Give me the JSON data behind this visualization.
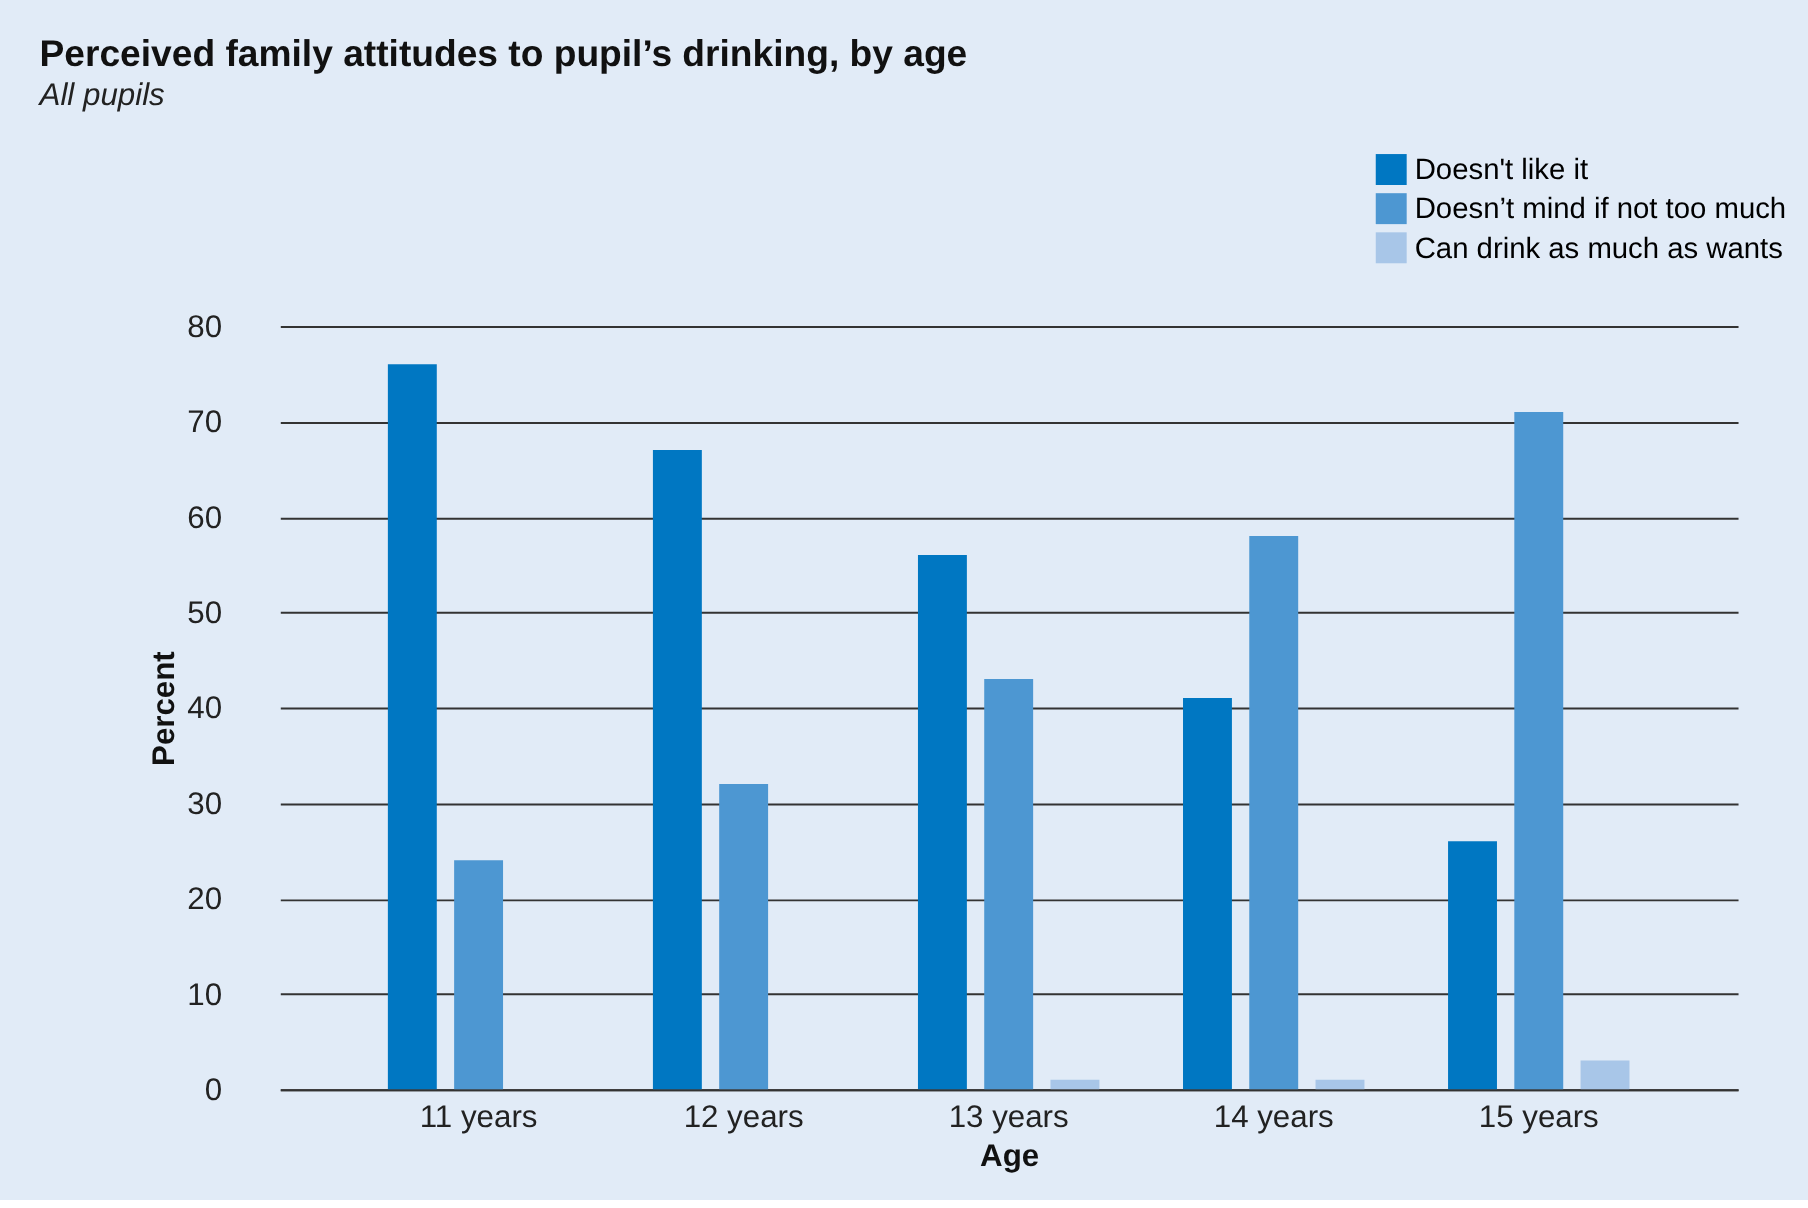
{
  "chart_data": {
    "type": "bar",
    "title": "Perceived family attitudes to pupil’s drinking, by age",
    "subtitle": "All pupils",
    "xlabel": "Age",
    "ylabel": "Percent",
    "categories": [
      "11 years",
      "12 years",
      "13 years",
      "14 years",
      "15 years"
    ],
    "series": [
      {
        "name": "Doesn't like it",
        "color": "#0077c2",
        "values": [
          76,
          67,
          56,
          41,
          26
        ]
      },
      {
        "name": "Doesn’t mind if not too much",
        "color": "#4d97d2",
        "values": [
          24,
          32,
          43,
          58,
          71
        ]
      },
      {
        "name": "Can drink as much as wants",
        "color": "#a8c6e8",
        "values": [
          0,
          0,
          1,
          1,
          3
        ]
      }
    ],
    "ylim": [
      0,
      80
    ],
    "yticks": [
      0,
      10,
      20,
      30,
      40,
      50,
      60,
      70,
      80
    ],
    "grid": "y",
    "legend": "top right"
  }
}
